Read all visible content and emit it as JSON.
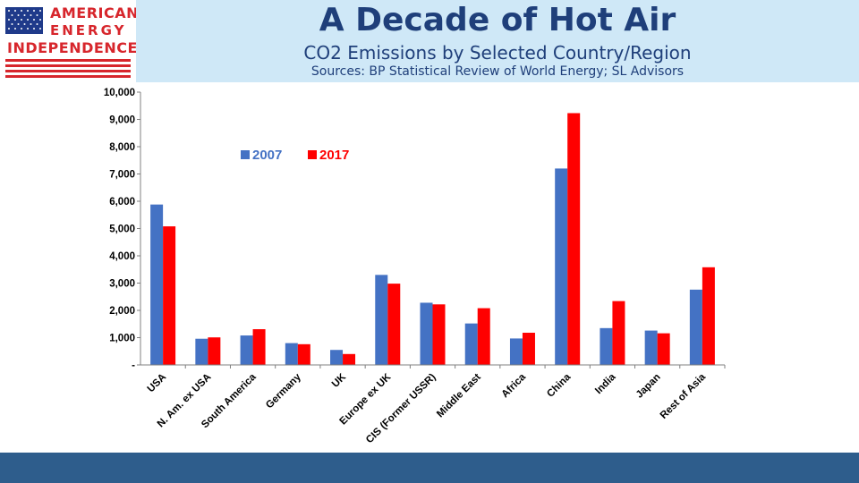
{
  "logo": {
    "line1": "AMERICAN",
    "line2": "ENERGY",
    "line3": "INDEPENDENCE"
  },
  "header": {
    "title": "A Decade of Hot Air",
    "subtitle": "CO2 Emissions by Selected Country/Region",
    "source": "Sources: BP Statistical Review of World Energy; SL Advisors"
  },
  "colors": {
    "series2007": "#4472c4",
    "series2017": "#ff0000",
    "header_bg": "#cfe8f7",
    "footer": "#2e5d8c",
    "title": "#1f3f7a",
    "logo_red": "#d7262c",
    "flag_blue": "#1f3a8a"
  },
  "chart_data": {
    "type": "bar",
    "title": "CO2 Emissions by Selected Country/Region",
    "xlabel": "",
    "ylabel": "",
    "ylim": [
      0,
      10000
    ],
    "yticks": [
      0,
      1000,
      2000,
      3000,
      4000,
      5000,
      6000,
      7000,
      8000,
      9000,
      10000
    ],
    "ytick_labels": [
      "-",
      "1,000",
      "2,000",
      "3,000",
      "4,000",
      "5,000",
      "6,000",
      "7,000",
      "8,000",
      "9,000",
      "10,000"
    ],
    "categories": [
      "USA",
      "N. Am. ex USA",
      "South America",
      "Germany",
      "UK",
      "Europe ex UK",
      "CIS (Former USSR)",
      "Middle East",
      "Africa",
      "China",
      "India",
      "Japan",
      "Rest of Asia"
    ],
    "series": [
      {
        "name": "2007",
        "color": "#4472c4",
        "values": [
          5880,
          960,
          1080,
          800,
          550,
          3300,
          2280,
          1520,
          970,
          7200,
          1350,
          1260,
          2760
        ]
      },
      {
        "name": "2017",
        "color": "#ff0000",
        "values": [
          5080,
          1010,
          1310,
          760,
          400,
          2980,
          2220,
          2080,
          1180,
          9230,
          2340,
          1160,
          3580
        ]
      }
    ],
    "legend": "top-left inside plot"
  }
}
